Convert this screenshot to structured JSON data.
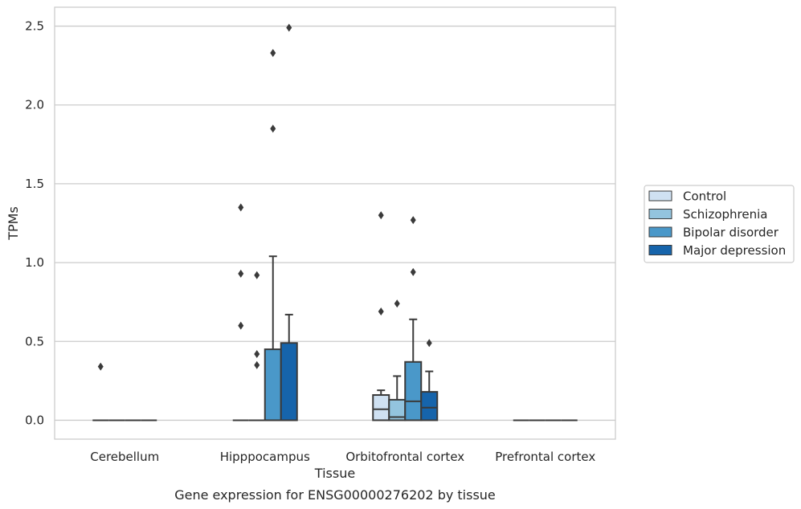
{
  "chart_data": {
    "type": "box",
    "xlabel": "Tissue",
    "ylabel": "TPMs",
    "caption": "Gene expression for ENSG00000276202 by tissue",
    "ylim": [
      -0.12,
      2.62
    ],
    "yticks": [
      "0.0",
      "0.5",
      "1.0",
      "1.5",
      "2.0",
      "2.5"
    ],
    "grid": "horizontal",
    "legend_position": "right",
    "categories": [
      "Cerebellum",
      "Hipppocampus",
      "Orbitofrontal cortex",
      "Prefrontal cortex"
    ],
    "series": [
      {
        "name": "Control",
        "color": "#cfe1f2",
        "boxes": [
          {
            "q1": 0,
            "median": 0,
            "q3": 0,
            "whislo": 0,
            "whishi": 0,
            "fliers": [
              0.34
            ]
          },
          {
            "q1": 0,
            "median": 0,
            "q3": 0,
            "whislo": 0,
            "whishi": 0,
            "fliers": [
              0.6,
              0.93,
              1.35
            ]
          },
          {
            "q1": 0,
            "median": 0.07,
            "q3": 0.16,
            "whislo": 0,
            "whishi": 0.19,
            "fliers": [
              0.69,
              1.3
            ]
          },
          {
            "q1": 0,
            "median": 0,
            "q3": 0,
            "whislo": 0,
            "whishi": 0,
            "fliers": []
          }
        ]
      },
      {
        "name": "Schizophrenia",
        "color": "#93c4de",
        "boxes": [
          {
            "q1": 0,
            "median": 0,
            "q3": 0,
            "whislo": 0,
            "whishi": 0,
            "fliers": []
          },
          {
            "q1": 0,
            "median": 0,
            "q3": 0,
            "whislo": 0,
            "whishi": 0,
            "fliers": [
              0.35,
              0.42,
              0.92
            ]
          },
          {
            "q1": 0,
            "median": 0.02,
            "q3": 0.13,
            "whislo": 0,
            "whishi": 0.28,
            "fliers": [
              0.74
            ]
          },
          {
            "q1": 0,
            "median": 0,
            "q3": 0,
            "whislo": 0,
            "whishi": 0,
            "fliers": []
          }
        ]
      },
      {
        "name": "Bipolar disorder",
        "color": "#4a98c9",
        "boxes": [
          {
            "q1": 0,
            "median": 0,
            "q3": 0,
            "whislo": 0,
            "whishi": 0,
            "fliers": []
          },
          {
            "q1": 0,
            "median": 0,
            "q3": 0.45,
            "whislo": 0,
            "whishi": 1.04,
            "fliers": [
              1.85,
              2.33
            ]
          },
          {
            "q1": 0,
            "median": 0.12,
            "q3": 0.37,
            "whislo": 0,
            "whishi": 0.64,
            "fliers": [
              0.94,
              1.27
            ]
          },
          {
            "q1": 0,
            "median": 0,
            "q3": 0,
            "whislo": 0,
            "whishi": 0,
            "fliers": []
          }
        ]
      },
      {
        "name": "Major depression",
        "color": "#1664ab",
        "boxes": [
          {
            "q1": 0,
            "median": 0,
            "q3": 0,
            "whislo": 0,
            "whishi": 0,
            "fliers": []
          },
          {
            "q1": 0,
            "median": 0,
            "q3": 0.49,
            "whislo": 0,
            "whishi": 0.67,
            "fliers": [
              2.49
            ]
          },
          {
            "q1": 0,
            "median": 0.08,
            "q3": 0.18,
            "whislo": 0,
            "whishi": 0.31,
            "fliers": [
              0.49
            ]
          },
          {
            "q1": 0,
            "median": 0,
            "q3": 0,
            "whislo": 0,
            "whishi": 0,
            "fliers": []
          }
        ]
      }
    ]
  }
}
